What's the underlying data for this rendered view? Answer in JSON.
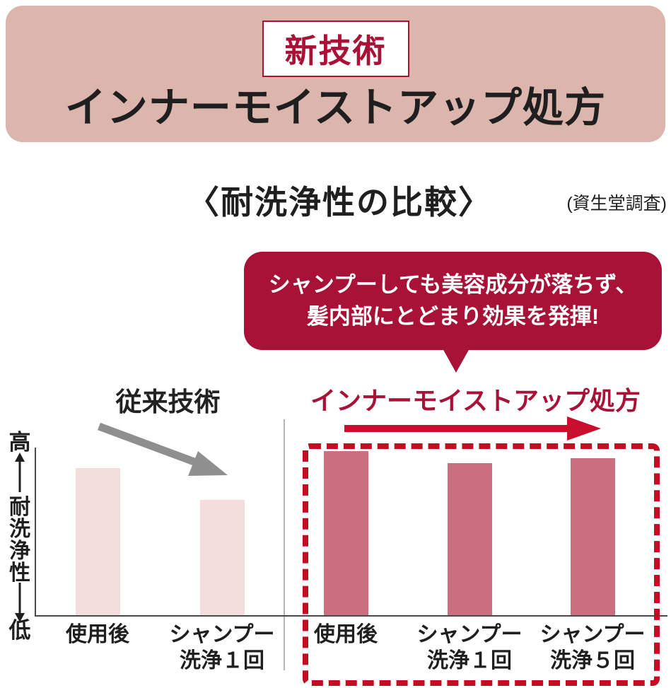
{
  "banner": {
    "badge_label": "新技術",
    "title": "インナーモイストアップ処方"
  },
  "heading": {
    "title": "〈耐洗浄性の比較〉",
    "source": "(資生堂調査)"
  },
  "callout": {
    "line1": "シャンプーしても美容成分が落ちず、",
    "line2": "髪内部にとどまり効果を発揮!"
  },
  "chart_data": {
    "type": "bar",
    "title": "〈耐洗浄性の比較〉",
    "source": "(資生堂調査)",
    "ylabel": "耐洗浄性",
    "y_axis_top_label": "高",
    "y_axis_bottom_label": "低",
    "ylim": [
      0,
      100
    ],
    "grid": false,
    "annotation": "シャンプーしても美容成分が落ちず、髪内部にとどまり効果を発揮!",
    "groups": [
      {
        "name": "従来技術",
        "bar_color": "#f3dedd",
        "categories": [
          "使用後",
          "シャンプー\n洗浄１回"
        ],
        "values": [
          87,
          68
        ]
      },
      {
        "name": "インナーモイストアップ処方",
        "bar_color": "#cb6e7e",
        "categories": [
          "使用後",
          "シャンプー\n洗浄１回",
          "シャンプー\n洗浄５回"
        ],
        "values": [
          97,
          90,
          93
        ]
      }
    ]
  },
  "colors": {
    "banner_bg": "#dcb6ac",
    "crimson": "#a81237",
    "bright_red": "#c30d23",
    "old_bar": "#f3dedd",
    "new_bar": "#cb6e7e",
    "gray_arrow": "#8f8f8f"
  }
}
